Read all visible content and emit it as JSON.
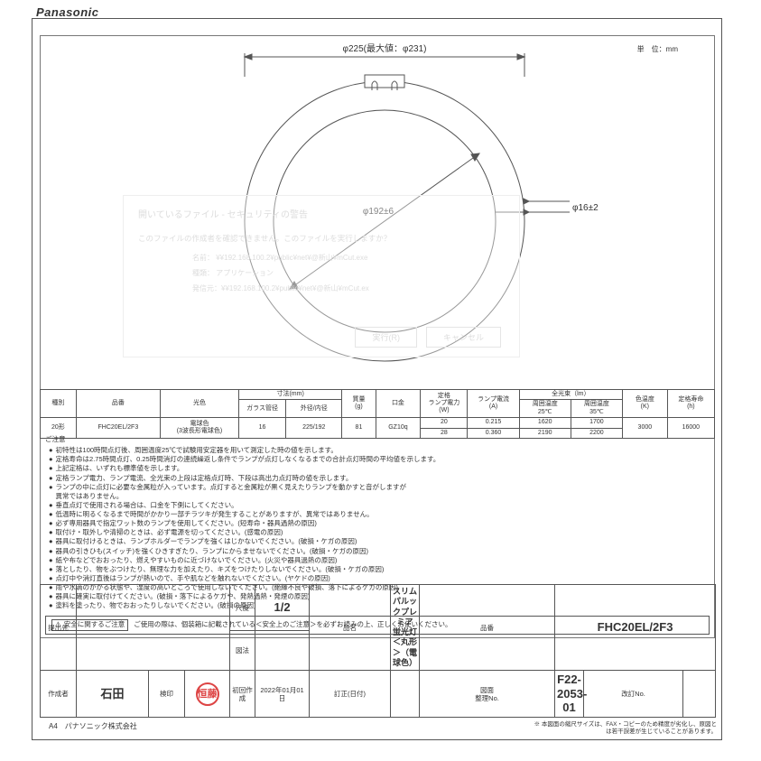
{
  "brand": "Panasonic",
  "unit_label": "単　位：mm",
  "diagram": {
    "dim_outer": "φ225(最大値：φ231)",
    "dim_inner": "φ192±6",
    "dim_tube": "φ16±2",
    "outer_radius": 155,
    "inner_radius": 123,
    "stroke": "#555",
    "stroke_width": 1
  },
  "dialog": {
    "title": "開いているファイル - セキュリティの警告",
    "line1": "このファイルの作成者を確認できません。このファイルを実行しますか？",
    "rows": [
      "名前：  ¥¥192.168.100.2¥public¥net¥@新山¥mCut.exe",
      "種類：  アプリケーション",
      "発信元：¥¥192.168.100.2¥public¥net¥@新山¥mCut.ex"
    ],
    "btn_run": "実行(R)",
    "btn_cancel": "キャンセル"
  },
  "spec": {
    "headers": {
      "kind": "種別",
      "part": "品番",
      "color": "光色",
      "dim": "寸法(mm)",
      "dim_glass": "ガラス管径",
      "dim_od": "外径/内径",
      "mass": "質量\n(g)",
      "base": "口金",
      "rated": "定格\nランプ電力\n(W)",
      "current": "ランプ電流\n(A)",
      "flux": "全光束（lm）",
      "flux25": "周囲温度\n25℃",
      "flux35": "周囲温度\n35℃",
      "cct": "色温度\n(K)",
      "life": "定格寿命\n(h)"
    },
    "row": {
      "kind": "20形",
      "part": "FHC20EL/2F3",
      "color": "電球色\n(3波長形電球色)",
      "glass": "16",
      "od": "225/192",
      "mass": "81",
      "base": "GZ10q",
      "w1": "20",
      "w2": "28",
      "a1": "0.215",
      "a2": "0.360",
      "lm25_1": "1620",
      "lm25_2": "2190",
      "lm35_1": "1700",
      "lm35_2": "2200",
      "cct": "3000",
      "life": "16000"
    }
  },
  "notes": {
    "title": "ご注意",
    "items": [
      "初特性は100時間点灯後、周囲温度25℃で試験用安定器を用いて測定した時の値を示します。",
      "定格寿命は2.75時間点灯、0.25時間消灯の連続繰返し条件でランプが点灯しなくなるまでの合計点灯時間の平均値を示します。",
      "上記定格は、いずれも標準値を示します。",
      "定格ランプ電力、ランプ電流、全光束の上段は定格点灯時、下段は高出力点灯時の値を示します。",
      "ランプの中に点灯に必要な金属粒が入っています。点灯すると金属粒が黒く見えたりランプを動かすと音がしますが\n異常ではありません。",
      "垂直点灯で使用される場合は、口金を下側にしてください。",
      "低温時に明るくなるまで時間がかかり一部チラツキが発生することがありますが、異常ではありません。",
      "必ず専用器具で指定ワット数のランプを使用してください。(短寿命・器具過熱の原因)",
      "取付け・取外しや清掃のときは、必ず電源を切ってください。(感電の原因)",
      "器具に取付けるときは、ランプホルダーでランプを強くはじかないでください。(破損・ケガの原因)",
      "器具の引きひも(スイッチ)を強くひきすぎたり、ランプにからませないでください。(破損・ケガの原因)",
      "紙や布などでおおったり、燃えやすいものに近づけないでください。(火災や器具過熱の原因)",
      "落としたり、物をぶつけたり、無理な力を加えたり、キズをつけたりしないでください。(破損・ケガの原因)",
      "点灯中や消灯直後はランプが熱いので、手や肌などを触れないでください。(ヤケドの原因)",
      "雨や水滴のかかる状態や、湿度の高いところで使用しないでください。(絶縁不良や破損、落下によるケガの原因)",
      "器具に確実に取付けてください。(破損・落下によるケガや、発熱過熱・発煙の原因)",
      "塗料を塗ったり、物でおおったりしないでください。(破損の原因)"
    ]
  },
  "safety": {
    "label": "安全に関するご注意",
    "text": "ご使用の際は、個装箱に記載されている＜安全上のご注意＞を必ずお読みの上、正しくお使いください。"
  },
  "titleblock": {
    "labels": {
      "dest": "提出先",
      "scale": "尺度",
      "drawing": "図法",
      "name": "品名",
      "part": "品番",
      "author": "作成者",
      "stamp": "検印",
      "created": "初回作成",
      "rev": "訂正(日付)",
      "docno": "図面\n整理No.",
      "revno": "改訂No."
    },
    "values": {
      "scale": "1/2",
      "name": "スリムパルックプレミア\n蛍光灯\n＜丸形＞（電球色）",
      "part": "FHC20EL/2F3",
      "author": "石田",
      "created": "2022年01月01日",
      "docno": "F22-2053-01"
    },
    "stamp_text": "恒藤"
  },
  "footer": {
    "left": "A4　パナソニック株式会社",
    "right": "※ 本図面の縮尺サイズは、FAX・コピーのため精度が劣化し、原図と\nは若干誤差が生じていることがあります。"
  }
}
